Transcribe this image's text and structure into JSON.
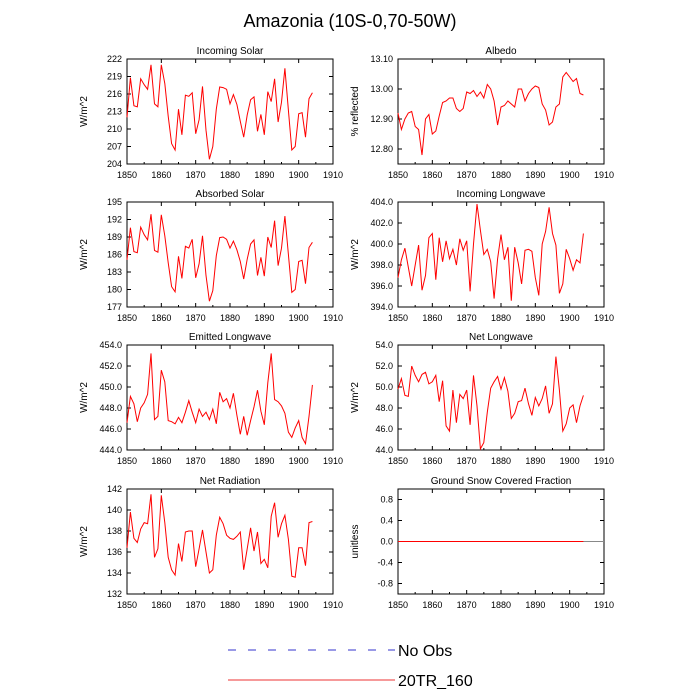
{
  "figure": {
    "title": "Amazonia (10S-0,70-50W)",
    "legend": [
      {
        "label": "No Obs",
        "style": "dashed",
        "color": "#3333cc"
      },
      {
        "label": "20TR_160",
        "style": "solid",
        "color": "#ee3333"
      }
    ]
  },
  "colors": {
    "series": "#ff0000",
    "zero_line": "#888888",
    "axis": "#000000"
  },
  "chart_data": [
    {
      "type": "line",
      "title": "Incoming Solar",
      "ylabel": "W/m^2",
      "xlim": [
        1850,
        1910
      ],
      "xticks": [
        1850,
        1860,
        1870,
        1880,
        1890,
        1900,
        1910
      ],
      "ylim": [
        204,
        222
      ],
      "yticks": [
        "204",
        "207",
        "210",
        "213",
        "216",
        "219",
        "222"
      ],
      "x": [
        1850,
        1851,
        1852,
        1853,
        1854,
        1855,
        1856,
        1857,
        1858,
        1859,
        1860,
        1861,
        1862,
        1863,
        1864,
        1865,
        1866,
        1867,
        1868,
        1869,
        1870,
        1871,
        1872,
        1873,
        1874,
        1875,
        1876,
        1877,
        1878,
        1879,
        1880,
        1881,
        1882,
        1883,
        1884,
        1885,
        1886,
        1887,
        1888,
        1889,
        1890,
        1891,
        1892,
        1893,
        1894,
        1895,
        1896,
        1897,
        1898,
        1899,
        1900,
        1901,
        1902,
        1903,
        1904
      ],
      "series": [
        {
          "name": "20TR_160",
          "values": [
            212,
            218.8,
            214,
            213.8,
            218.6,
            217.6,
            216.8,
            221,
            214.3,
            213.8,
            221,
            217.8,
            212.2,
            207.5,
            206.4,
            213.4,
            209,
            215.8,
            215.6,
            216.2,
            209.2,
            211.6,
            217.3,
            209.8,
            204.8,
            207,
            213.4,
            217.2,
            217.1,
            216.8,
            214.3,
            215.9,
            214.2,
            211.3,
            208.6,
            212.4,
            215,
            215.5,
            209.6,
            212.5,
            209,
            216.4,
            214.7,
            218.6,
            211.2,
            214.6,
            220.4,
            213.2,
            206.4,
            207,
            212.6,
            212.8,
            208.6,
            215.2,
            216.2
          ]
        }
      ]
    },
    {
      "type": "line",
      "title": "Albedo",
      "ylabel": "% reflected",
      "xlim": [
        1850,
        1910
      ],
      "xticks": [
        1850,
        1860,
        1870,
        1880,
        1890,
        1900,
        1910
      ],
      "ylim": [
        12.75,
        13.1
      ],
      "yticks": [
        "12.80",
        "12.90",
        "13.00",
        "13.10"
      ],
      "x": [
        1850,
        1851,
        1852,
        1853,
        1854,
        1855,
        1856,
        1857,
        1858,
        1859,
        1860,
        1861,
        1862,
        1863,
        1864,
        1865,
        1866,
        1867,
        1868,
        1869,
        1870,
        1871,
        1872,
        1873,
        1874,
        1875,
        1876,
        1877,
        1878,
        1879,
        1880,
        1881,
        1882,
        1883,
        1884,
        1885,
        1886,
        1887,
        1888,
        1889,
        1890,
        1891,
        1892,
        1893,
        1894,
        1895,
        1896,
        1897,
        1898,
        1899,
        1900,
        1901,
        1902,
        1903,
        1904
      ],
      "series": [
        {
          "name": "20TR_160",
          "values": [
            12.92,
            12.865,
            12.9,
            12.92,
            12.925,
            12.875,
            12.865,
            12.78,
            12.9,
            12.915,
            12.85,
            12.86,
            12.91,
            12.955,
            12.96,
            12.97,
            12.97,
            12.935,
            12.925,
            12.935,
            12.99,
            12.985,
            12.995,
            12.975,
            12.99,
            12.97,
            13.015,
            13.0,
            12.96,
            12.88,
            12.94,
            12.945,
            12.96,
            12.95,
            12.94,
            13.0,
            13.0,
            12.96,
            12.985,
            13.0,
            13.01,
            13.005,
            12.95,
            12.93,
            12.88,
            12.89,
            12.94,
            12.95,
            13.04,
            13.055,
            13.04,
            13.025,
            13.035,
            12.985,
            12.98
          ]
        }
      ]
    },
    {
      "type": "line",
      "title": "Absorbed Solar",
      "ylabel": "W/m^2",
      "xlim": [
        1850,
        1910
      ],
      "xticks": [
        1850,
        1860,
        1870,
        1880,
        1890,
        1900,
        1910
      ],
      "ylim": [
        177,
        195
      ],
      "yticks": [
        "177",
        "180",
        "183",
        "186",
        "189",
        "192",
        "195"
      ],
      "x": [
        1850,
        1851,
        1852,
        1853,
        1854,
        1855,
        1856,
        1857,
        1858,
        1859,
        1860,
        1861,
        1862,
        1863,
        1864,
        1865,
        1866,
        1867,
        1868,
        1869,
        1870,
        1871,
        1872,
        1873,
        1874,
        1875,
        1876,
        1877,
        1878,
        1879,
        1880,
        1881,
        1882,
        1883,
        1884,
        1885,
        1886,
        1887,
        1888,
        1889,
        1890,
        1891,
        1892,
        1893,
        1894,
        1895,
        1896,
        1897,
        1898,
        1899,
        1900,
        1901,
        1902,
        1903,
        1904
      ],
      "series": [
        {
          "name": "20TR_160",
          "values": [
            185.1,
            190.6,
            186.5,
            186.3,
            190.7,
            189.4,
            188.5,
            192.9,
            186.7,
            186.4,
            192.8,
            189.2,
            184.6,
            180.5,
            179.6,
            185.7,
            181.9,
            187.4,
            187.1,
            188.6,
            182,
            184.4,
            189.2,
            182.4,
            178,
            179.8,
            185.8,
            188.9,
            189,
            188.6,
            187.1,
            188.3,
            186.8,
            184.8,
            181.8,
            185.2,
            187.8,
            188.5,
            182.4,
            185.5,
            182.3,
            189,
            187.2,
            191.8,
            184.1,
            187.1,
            192.6,
            186,
            179.5,
            180,
            184.8,
            185,
            181,
            187.2,
            188.1
          ]
        }
      ]
    },
    {
      "type": "line",
      "title": "Incoming Longwave",
      "ylabel": "W/m^2",
      "xlim": [
        1850,
        1910
      ],
      "xticks": [
        1850,
        1860,
        1870,
        1880,
        1890,
        1900,
        1910
      ],
      "ylim": [
        394,
        404
      ],
      "yticks": [
        "394.0",
        "396.0",
        "398.0",
        "400.0",
        "402.0",
        "404.0"
      ],
      "x": [
        1850,
        1851,
        1852,
        1853,
        1854,
        1855,
        1856,
        1857,
        1858,
        1859,
        1860,
        1861,
        1862,
        1863,
        1864,
        1865,
        1866,
        1867,
        1868,
        1869,
        1870,
        1871,
        1872,
        1873,
        1874,
        1875,
        1876,
        1877,
        1878,
        1879,
        1880,
        1881,
        1882,
        1883,
        1884,
        1885,
        1886,
        1887,
        1888,
        1889,
        1890,
        1891,
        1892,
        1893,
        1894,
        1895,
        1896,
        1897,
        1898,
        1899,
        1900,
        1901,
        1902,
        1903,
        1904
      ],
      "series": [
        {
          "name": "20TR_160",
          "values": [
            396.8,
            398.5,
            399.6,
            397.8,
            396,
            398,
            399.9,
            395.6,
            397,
            400.6,
            401,
            396.6,
            400.6,
            398.3,
            400.3,
            398.6,
            399.5,
            398,
            400.5,
            399.4,
            400.3,
            395.5,
            400,
            403.8,
            401.3,
            399,
            399.5,
            398.3,
            394.8,
            398.6,
            400.9,
            398.5,
            399.7,
            394.6,
            399.7,
            398.2,
            396.2,
            399.4,
            399.5,
            399.3,
            396.8,
            395.1,
            400,
            401.2,
            403.5,
            401,
            399.9,
            395.3,
            396.2,
            399.5,
            398.6,
            397.5,
            398.5,
            398.2,
            401
          ]
        }
      ]
    },
    {
      "type": "line",
      "title": "Emitted Longwave",
      "ylabel": "W/m^2",
      "xlim": [
        1850,
        1910
      ],
      "xticks": [
        1850,
        1860,
        1870,
        1880,
        1890,
        1900,
        1910
      ],
      "ylim": [
        444,
        454
      ],
      "yticks": [
        "444.0",
        "446.0",
        "448.0",
        "450.0",
        "452.0",
        "454.0"
      ],
      "x": [
        1850,
        1851,
        1852,
        1853,
        1854,
        1855,
        1856,
        1857,
        1858,
        1859,
        1860,
        1861,
        1862,
        1863,
        1864,
        1865,
        1866,
        1867,
        1868,
        1869,
        1870,
        1871,
        1872,
        1873,
        1874,
        1875,
        1876,
        1877,
        1878,
        1879,
        1880,
        1881,
        1882,
        1883,
        1884,
        1885,
        1886,
        1887,
        1888,
        1889,
        1890,
        1891,
        1892,
        1893,
        1894,
        1895,
        1896,
        1897,
        1898,
        1899,
        1900,
        1901,
        1902,
        1903,
        1904
      ],
      "series": [
        {
          "name": "20TR_160",
          "values": [
            446.6,
            449.1,
            448.4,
            446.7,
            448,
            448.5,
            449.3,
            453.2,
            446.9,
            447.2,
            451.6,
            450.5,
            446.8,
            446.7,
            446.5,
            447.1,
            446.6,
            447.6,
            448.7,
            447.6,
            446.6,
            447.9,
            447.2,
            447.6,
            446.9,
            447.9,
            446.5,
            449.5,
            448.6,
            448.9,
            448,
            449.4,
            447.3,
            445.5,
            447.2,
            445.4,
            446.8,
            448.1,
            449.7,
            447.7,
            446.4,
            450.4,
            453.2,
            448.8,
            448.6,
            448.2,
            447.5,
            445.7,
            445.2,
            446.1,
            446.8,
            445.2,
            444.6,
            447.2,
            450.2
          ]
        }
      ]
    },
    {
      "type": "line",
      "title": "Net Longwave",
      "ylabel": "W/m^2",
      "xlim": [
        1850,
        1910
      ],
      "xticks": [
        1850,
        1860,
        1870,
        1880,
        1890,
        1900,
        1910
      ],
      "ylim": [
        44,
        54
      ],
      "yticks": [
        "44.0",
        "46.0",
        "48.0",
        "50.0",
        "52.0",
        "54.0"
      ],
      "x": [
        1850,
        1851,
        1852,
        1853,
        1854,
        1855,
        1856,
        1857,
        1858,
        1859,
        1860,
        1861,
        1862,
        1863,
        1864,
        1865,
        1866,
        1867,
        1868,
        1869,
        1870,
        1871,
        1872,
        1873,
        1874,
        1875,
        1876,
        1877,
        1878,
        1879,
        1880,
        1881,
        1882,
        1883,
        1884,
        1885,
        1886,
        1887,
        1888,
        1889,
        1890,
        1891,
        1892,
        1893,
        1894,
        1895,
        1896,
        1897,
        1898,
        1899,
        1900,
        1901,
        1902,
        1903,
        1904
      ],
      "series": [
        {
          "name": "20TR_160",
          "values": [
            49.8,
            50.8,
            49.2,
            49.1,
            52,
            51.1,
            50.5,
            51.2,
            51.4,
            50.3,
            50.5,
            51.1,
            48.6,
            50.6,
            46.3,
            45.8,
            49.7,
            46.6,
            49.3,
            48.9,
            49.7,
            46.4,
            51.1,
            48.2,
            44.1,
            44.7,
            47.6,
            49.9,
            50.5,
            51,
            49.8,
            50.9,
            49.6,
            47,
            47.5,
            48.6,
            48.7,
            49.9,
            48.4,
            47.3,
            49,
            48.2,
            48.9,
            50.1,
            47.5,
            48.4,
            52.9,
            49.7,
            45.8,
            46.5,
            48,
            48.3,
            46.6,
            48.2,
            49.2
          ]
        }
      ]
    },
    {
      "type": "line",
      "title": "Net Radiation",
      "ylabel": "W/m^2",
      "xlim": [
        1850,
        1910
      ],
      "xticks": [
        1850,
        1860,
        1870,
        1880,
        1890,
        1900,
        1910
      ],
      "ylim": [
        132,
        142
      ],
      "yticks": [
        "132",
        "134",
        "136",
        "138",
        "140",
        "142"
      ],
      "x": [
        1850,
        1851,
        1852,
        1853,
        1854,
        1855,
        1856,
        1857,
        1858,
        1859,
        1860,
        1861,
        1862,
        1863,
        1864,
        1865,
        1866,
        1867,
        1868,
        1869,
        1870,
        1871,
        1872,
        1873,
        1874,
        1875,
        1876,
        1877,
        1878,
        1879,
        1880,
        1881,
        1882,
        1883,
        1884,
        1885,
        1886,
        1887,
        1888,
        1889,
        1890,
        1891,
        1892,
        1893,
        1894,
        1895,
        1896,
        1897,
        1898,
        1899,
        1900,
        1901,
        1902,
        1903,
        1904
      ],
      "series": [
        {
          "name": "20TR_160",
          "values": [
            136.4,
            139.8,
            137.3,
            136.9,
            138.2,
            138.8,
            138.7,
            141.5,
            135.5,
            136.3,
            141.4,
            138.8,
            135.5,
            134.3,
            133.8,
            136.8,
            135.1,
            137.9,
            138,
            138,
            134.6,
            136.3,
            138.1,
            136,
            134,
            134.3,
            137.6,
            139.3,
            138.7,
            137.6,
            137.3,
            137.2,
            137.5,
            137.9,
            134.3,
            136.3,
            138.3,
            136.1,
            137.9,
            134.9,
            135.3,
            134.5,
            139.4,
            140.7,
            137.4,
            138.7,
            139.5,
            137.2,
            133.7,
            133.6,
            136.4,
            136.4,
            134.7,
            138.8,
            138.9
          ]
        }
      ]
    },
    {
      "type": "line",
      "title": "Ground Snow Covered Fraction",
      "ylabel": "unitless",
      "xlim": [
        1850,
        1910
      ],
      "xticks": [
        1850,
        1860,
        1870,
        1880,
        1890,
        1900,
        1910
      ],
      "ylim": [
        -1.0,
        1.0
      ],
      "yticks": [
        "-0.8",
        "-0.4",
        "0.0",
        "0.4",
        "0.8"
      ],
      "ytick_values": [
        -0.8,
        -0.4,
        0.0,
        0.4,
        0.8
      ],
      "zero_line": true,
      "x": [
        1850,
        1904
      ],
      "series": [
        {
          "name": "20TR_160",
          "values": [
            0.0,
            0.0
          ]
        }
      ]
    }
  ]
}
